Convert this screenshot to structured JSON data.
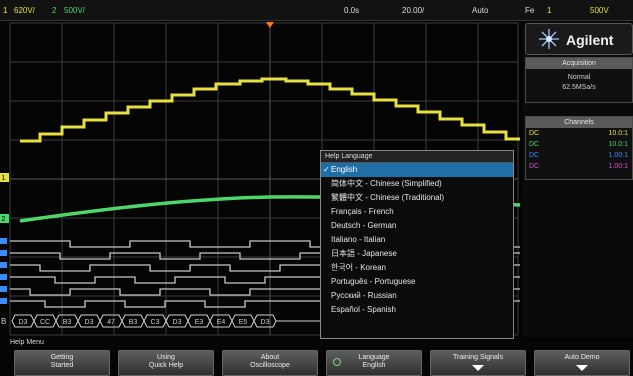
{
  "status_bar": {
    "ch1_label": "1",
    "ch1_scale": "620V/",
    "ch2_label": "2",
    "ch2_scale": "500V/",
    "time_delay": "0.0s",
    "time_base": "20.00/",
    "trigger_mode": "Auto",
    "trigger_slope": "Fe",
    "trigger_source": "1",
    "trigger_level": "500V"
  },
  "brand": {
    "name": "Agilent",
    "logo_icon": "agilent-spark-icon"
  },
  "acquisition": {
    "title": "Acquisition",
    "mode": "Normal",
    "rate": "62.5MSa/s"
  },
  "channels": {
    "title": "Channels",
    "rows": [
      {
        "coupling": "DC",
        "scale": "10.0:1",
        "color": "#e6e040"
      },
      {
        "coupling": "DC",
        "scale": "10.0:1",
        "color": "#4fd66b"
      },
      {
        "coupling": "DC",
        "scale": "1.00:1",
        "color": "#3b8cff"
      },
      {
        "coupling": "DC",
        "scale": "1.00:1",
        "color": "#e04ad0"
      }
    ]
  },
  "help_language_menu": {
    "title": "Help Language",
    "items": [
      {
        "label": "English",
        "selected": true
      },
      {
        "label": "简体中文 - Chinese (Simplified)",
        "selected": false
      },
      {
        "label": "繁體中文 - Chinese (Traditional)",
        "selected": false
      },
      {
        "label": "Français - French",
        "selected": false
      },
      {
        "label": "Deutsch - German",
        "selected": false
      },
      {
        "label": "Italiano - Italian",
        "selected": false
      },
      {
        "label": "日本語 - Japanese",
        "selected": false
      },
      {
        "label": "한국어 - Korean",
        "selected": false
      },
      {
        "label": "Português - Portuguese",
        "selected": false
      },
      {
        "label": "Русский - Russian",
        "selected": false
      },
      {
        "label": "Español - Spanish",
        "selected": false
      }
    ]
  },
  "help_menu_label": "Help Menu",
  "softkeys": [
    {
      "line1": "Getting",
      "line2": "Started",
      "icon": ""
    },
    {
      "line1": "Using",
      "line2": "Quick Help",
      "icon": ""
    },
    {
      "line1": "About",
      "line2": "Oscilloscope",
      "icon": ""
    },
    {
      "line1": "Language",
      "line2": "English",
      "icon": "select-knob-icon"
    },
    {
      "line1": "Training Signals",
      "line2": "",
      "icon": "down-arrow-icon"
    },
    {
      "line1": "Auto Demo",
      "line2": "",
      "icon": "down-arrow-icon"
    }
  ],
  "bus_labels": [
    "D3",
    "CC",
    "B3",
    "D3",
    "47",
    "B3",
    "C3",
    "D3",
    "E3",
    "E4",
    "E5",
    "D3"
  ],
  "colors": {
    "ch1": "#e6e040",
    "ch2": "#4fd66b",
    "digital": "#c8c8c8",
    "bus": "#cfcfcf",
    "selection": "#1d6fa5",
    "trigger_marker": "#ff7a1a"
  }
}
